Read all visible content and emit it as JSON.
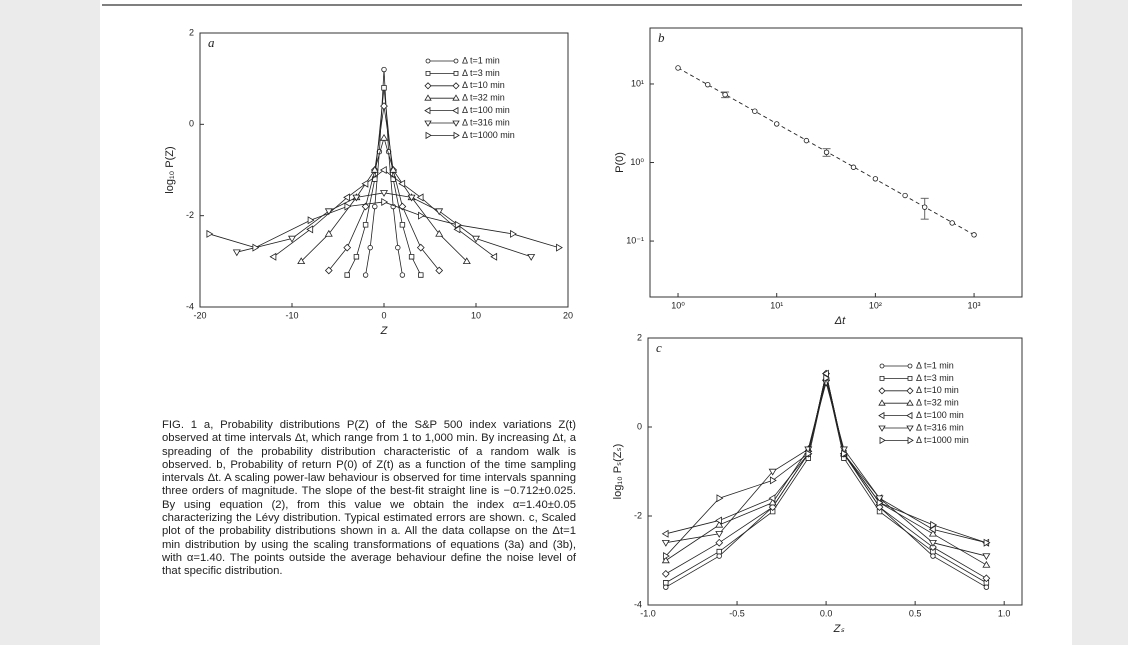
{
  "chart_data": [
    {
      "type": "line",
      "panel_label": "a",
      "x_label": "Z",
      "y_label": "log₁₀ P(Z)",
      "xlim": [
        -20,
        20
      ],
      "ylim": [
        -4,
        2
      ],
      "xticks": [
        -20,
        -10,
        0,
        10,
        20
      ],
      "yticks": [
        -4,
        -2,
        0,
        2
      ],
      "color": "#222222",
      "legend": "upper right",
      "series": [
        {
          "name": "Δ t=1 min",
          "marker": "circle",
          "x": [
            -2,
            -1.5,
            -1,
            -0.5,
            0,
            0.5,
            1,
            1.5,
            2
          ],
          "values": [
            -3.3,
            -2.7,
            -1.8,
            -0.6,
            1.2,
            -0.6,
            -1.8,
            -2.7,
            -3.3
          ]
        },
        {
          "name": "Δ t=3 min",
          "marker": "square",
          "x": [
            -4,
            -3,
            -2,
            -1,
            0,
            1,
            2,
            3,
            4
          ],
          "values": [
            -3.3,
            -2.9,
            -2.2,
            -1.2,
            0.8,
            -1.2,
            -2.2,
            -2.9,
            -3.3
          ]
        },
        {
          "name": "Δ t=10 min",
          "marker": "diamond",
          "x": [
            -6,
            -4,
            -2,
            -1,
            0,
            1,
            2,
            4,
            6
          ],
          "values": [
            -3.2,
            -2.7,
            -1.8,
            -1.0,
            0.4,
            -1.0,
            -1.8,
            -2.7,
            -3.2
          ]
        },
        {
          "name": "Δ t=32 min",
          "marker": "triangle-up",
          "x": [
            -9,
            -6,
            -3,
            -1,
            0,
            1,
            3,
            6,
            9
          ],
          "values": [
            -3.0,
            -2.4,
            -1.6,
            -1.0,
            -0.3,
            -1.0,
            -1.6,
            -2.4,
            -3.0
          ]
        },
        {
          "name": "Δ t=100 min",
          "marker": "triangle-left",
          "x": [
            -12,
            -8,
            -4,
            -2,
            0,
            2,
            4,
            8,
            12
          ],
          "values": [
            -2.9,
            -2.3,
            -1.6,
            -1.3,
            -1.0,
            -1.3,
            -1.6,
            -2.3,
            -2.9
          ]
        },
        {
          "name": "Δ t=316 min",
          "marker": "triangle-down",
          "x": [
            -16,
            -10,
            -6,
            -3,
            0,
            3,
            6,
            10,
            16
          ],
          "values": [
            -2.8,
            -2.5,
            -1.9,
            -1.6,
            -1.5,
            -1.6,
            -1.9,
            -2.5,
            -2.9
          ]
        },
        {
          "name": "Δ t=1000 min",
          "marker": "triangle-right",
          "x": [
            -19,
            -14,
            -8,
            -4,
            0,
            4,
            8,
            14,
            19
          ],
          "values": [
            -2.4,
            -2.7,
            -2.1,
            -1.8,
            -1.7,
            -2.0,
            -2.2,
            -2.4,
            -2.7
          ]
        }
      ]
    },
    {
      "type": "scatter",
      "panel_label": "b",
      "x_label": "Δt",
      "y_label": "P(0)",
      "log_x": true,
      "log_y": true,
      "xlim": [
        0.52,
        3060
      ],
      "ylim": [
        0.0194,
        51.6
      ],
      "xticks": [
        {
          "value": 1,
          "label": "10⁰"
        },
        {
          "value": 10,
          "label": "10¹"
        },
        {
          "value": 100,
          "label": "10²"
        },
        {
          "value": 1000,
          "label": "10³"
        }
      ],
      "yticks": [
        {
          "value": 0.1,
          "label": "10⁻¹"
        },
        {
          "value": 1,
          "label": "10⁰"
        },
        {
          "value": 10,
          "label": "10¹"
        }
      ],
      "color": "#222222",
      "marker": "circle",
      "x": [
        1,
        2,
        3,
        6,
        10,
        20,
        32,
        60,
        100,
        200,
        316,
        600,
        1000
      ],
      "values": [
        16,
        9.8,
        7.3,
        4.5,
        3.1,
        1.9,
        1.35,
        0.87,
        0.62,
        0.38,
        0.27,
        0.17,
        0.12
      ],
      "errors": [
        null,
        null,
        0.6,
        null,
        null,
        null,
        0.15,
        null,
        null,
        null,
        0.08,
        null,
        null
      ],
      "fit": {
        "style": "dashed",
        "x": [
          1,
          1000
        ],
        "values": [
          16,
          0.12
        ]
      }
    },
    {
      "type": "line",
      "panel_label": "c",
      "x_label": "Zₛ",
      "y_label": "log₁₀ Pₛ(Zₛ)",
      "xlim": [
        -1.0,
        1.1
      ],
      "ylim": [
        -4,
        2
      ],
      "xticks": [
        {
          "value": -1,
          "label": "-1.0"
        },
        -0.5,
        {
          "value": 0,
          "label": "0.0"
        },
        0.5,
        {
          "value": 1,
          "label": "1.0"
        }
      ],
      "yticks": [
        -4,
        -2,
        0,
        2
      ],
      "color": "#222222",
      "legend": "upper right",
      "series": [
        {
          "name": "Δ t=1 min",
          "marker": "circle",
          "x": [
            -0.9,
            -0.6,
            -0.3,
            -0.1,
            0,
            0.1,
            0.3,
            0.6,
            0.9
          ],
          "values": [
            -3.6,
            -2.9,
            -1.8,
            -0.6,
            1.2,
            -0.6,
            -1.8,
            -2.9,
            -3.6
          ]
        },
        {
          "name": "Δ t=3 min",
          "marker": "square",
          "x": [
            -0.9,
            -0.6,
            -0.3,
            -0.1,
            0,
            0.1,
            0.3,
            0.6,
            0.9
          ],
          "values": [
            -3.5,
            -2.8,
            -1.9,
            -0.7,
            1.1,
            -0.7,
            -1.9,
            -2.8,
            -3.5
          ]
        },
        {
          "name": "Δ t=10 min",
          "marker": "diamond",
          "x": [
            -0.9,
            -0.6,
            -0.3,
            -0.1,
            0,
            0.1,
            0.3,
            0.6,
            0.9
          ],
          "values": [
            -3.3,
            -2.6,
            -1.8,
            -0.6,
            1.2,
            -0.6,
            -1.8,
            -2.7,
            -3.4
          ]
        },
        {
          "name": "Δ t=32 min",
          "marker": "triangle-up",
          "x": [
            -0.9,
            -0.6,
            -0.3,
            -0.1,
            0,
            0.1,
            0.3,
            0.6,
            0.9
          ],
          "values": [
            -3.0,
            -2.2,
            -1.7,
            -0.5,
            1.1,
            -0.6,
            -1.7,
            -2.4,
            -3.1
          ]
        },
        {
          "name": "Δ t=100 min",
          "marker": "triangle-left",
          "x": [
            -0.9,
            -0.6,
            -0.3,
            -0.1,
            0,
            0.1,
            0.3,
            0.6,
            0.9
          ],
          "values": [
            -2.4,
            -2.1,
            -1.6,
            -0.6,
            1.2,
            -0.6,
            -1.6,
            -2.3,
            -2.6
          ]
        },
        {
          "name": "Δ t=316 min",
          "marker": "triangle-down",
          "x": [
            -0.9,
            -0.6,
            -0.3,
            -0.1,
            0,
            0.1,
            0.3,
            0.6,
            0.9
          ],
          "values": [
            -2.6,
            -2.4,
            -1.0,
            -0.5,
            1.0,
            -0.5,
            -1.6,
            -2.6,
            -2.9
          ]
        },
        {
          "name": "Δ t=1000 min",
          "marker": "triangle-right",
          "x": [
            -0.9,
            -0.6,
            -0.3,
            -0.1,
            0,
            0.1,
            0.3,
            0.6,
            0.9
          ],
          "values": [
            -2.9,
            -1.6,
            -1.2,
            -0.6,
            1.1,
            -0.6,
            -1.7,
            -2.2,
            -2.6
          ]
        }
      ]
    }
  ],
  "caption": "FIG. 1 a, Probability distributions P(Z) of the S&P 500 index variations Z(t) observed at time intervals Δt, which range from 1 to 1,000 min. By increasing Δt, a spreading of the probability distribution characteristic of a random walk is observed. b, Probability of return P(0) of Z(t) as a function of the time sampling intervals Δt. A scaling power-law behaviour is observed for time intervals spanning three orders of magnitude. The slope of the best-fit straight line is −0.712±0.025. By using equation (2), from this value we obtain the index α=1.40±0.05 characterizing the Lévy distribution. Typical estimated errors are shown. c, Scaled plot of the probability distributions shown in a. All the data collapse on the Δt=1 min distribution by using the scaling transformations of equations (3a) and (3b), with α=1.40. The points outside the average behaviour define the noise level of that specific distribution."
}
